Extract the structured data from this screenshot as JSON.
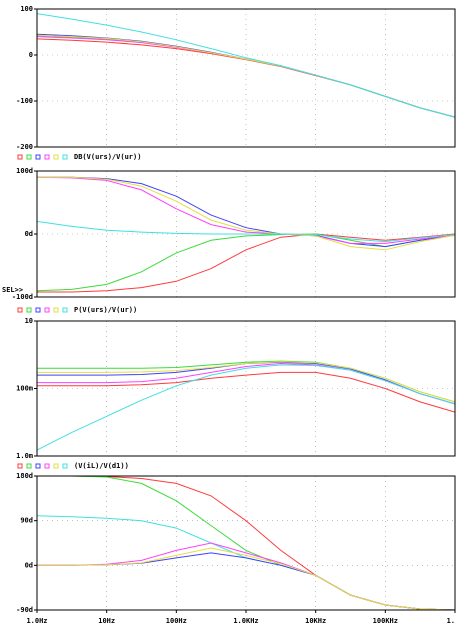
{
  "chart_data": [
    {
      "type": "line",
      "trace": "DB(V(urs)/V(ur))",
      "xscale": "log",
      "yscale": "linear",
      "x": [
        1,
        3.16,
        10,
        31.6,
        100,
        316,
        1000,
        3160,
        10000,
        31600,
        100000,
        316000,
        1000000
      ],
      "xlim": [
        1,
        1000000
      ],
      "ylim": [
        -200,
        100
      ],
      "yticks": [
        100,
        0,
        -100,
        -200
      ],
      "grid": true,
      "series": [
        {
          "color": "#ff3b3b",
          "values": [
            35,
            32,
            28,
            22,
            14,
            3,
            -10,
            -25,
            -45,
            -65,
            -90,
            -115,
            -135
          ]
        },
        {
          "color": "#3bdc3b",
          "values": [
            42,
            39,
            35,
            28,
            18,
            5,
            -9,
            -24,
            -44,
            -65,
            -90,
            -115,
            -135
          ]
        },
        {
          "color": "#4040ff",
          "values": [
            45,
            42,
            37,
            30,
            19,
            6,
            -9,
            -24,
            -44,
            -65,
            -90,
            -115,
            -135
          ]
        },
        {
          "color": "#ff40ff",
          "values": [
            40,
            37,
            33,
            27,
            17,
            5,
            -9,
            -24,
            -44,
            -65,
            -90,
            -115,
            -135
          ]
        },
        {
          "color": "#e0e040",
          "values": [
            43,
            40,
            36,
            29,
            18,
            5,
            -9,
            -24,
            -44,
            -65,
            -90,
            -115,
            -135
          ]
        },
        {
          "color": "#40e0e0",
          "values": [
            90,
            78,
            65,
            50,
            33,
            14,
            -6,
            -23,
            -44,
            -65,
            -90,
            -115,
            -135
          ]
        }
      ]
    },
    {
      "type": "line",
      "trace": "P(V(urs)/V(ur))",
      "selector": "SEL>>",
      "xscale": "log",
      "yscale": "linear",
      "x": [
        1,
        3.16,
        10,
        31.6,
        100,
        316,
        1000,
        3160,
        10000,
        31600,
        100000,
        316000,
        1000000
      ],
      "xlim": [
        1,
        1000000
      ],
      "ylim": [
        -100,
        100
      ],
      "yticks": [
        {
          "value": 100,
          "label": "100d"
        },
        {
          "value": 0,
          "label": "0d"
        },
        {
          "value": -100,
          "label": "-100d"
        }
      ],
      "grid": true,
      "series": [
        {
          "color": "#ff3b3b",
          "values": [
            -92,
            -92,
            -90,
            -85,
            -75,
            -55,
            -25,
            -5,
            0,
            -5,
            -10,
            -5,
            0
          ]
        },
        {
          "color": "#3bdc3b",
          "values": [
            -90,
            -88,
            -80,
            -60,
            -30,
            -10,
            -3,
            -1,
            0,
            -10,
            -20,
            -10,
            -2
          ]
        },
        {
          "color": "#4040ff",
          "values": [
            90,
            90,
            88,
            80,
            60,
            30,
            10,
            0,
            -2,
            -15,
            -20,
            -10,
            -2
          ]
        },
        {
          "color": "#ff40ff",
          "values": [
            90,
            89,
            85,
            70,
            40,
            15,
            3,
            0,
            -3,
            -15,
            -15,
            -8,
            -2
          ]
        },
        {
          "color": "#e0e040",
          "values": [
            90,
            90,
            87,
            76,
            52,
            22,
            6,
            0,
            -3,
            -20,
            -25,
            -12,
            -2
          ]
        },
        {
          "color": "#40e0e0",
          "values": [
            20,
            12,
            6,
            3,
            1,
            0,
            0,
            0,
            -1,
            -8,
            -12,
            -6,
            -1
          ]
        }
      ]
    },
    {
      "type": "line",
      "trace": "(V(iL)/V(d1))",
      "xscale": "log",
      "yscale": "log",
      "x": [
        1,
        3.16,
        10,
        31.6,
        100,
        316,
        1000,
        3160,
        10000,
        31600,
        100000,
        316000,
        1000000
      ],
      "xlim": [
        1,
        1000000
      ],
      "ylim": [
        0.001,
        10
      ],
      "yticks": [
        10,
        {
          "value": 0.1,
          "label": "100m"
        },
        {
          "value": 0.001,
          "label": "1.0m"
        }
      ],
      "grid": true,
      "series": [
        {
          "color": "#ff3b3b",
          "values": [
            0.12,
            0.12,
            0.12,
            0.13,
            0.15,
            0.2,
            0.25,
            0.3,
            0.3,
            0.2,
            0.1,
            0.04,
            0.02
          ]
        },
        {
          "color": "#3bdc3b",
          "values": [
            0.4,
            0.4,
            0.4,
            0.4,
            0.42,
            0.5,
            0.6,
            0.65,
            0.6,
            0.4,
            0.2,
            0.08,
            0.04
          ]
        },
        {
          "color": "#4040ff",
          "values": [
            0.25,
            0.25,
            0.25,
            0.26,
            0.3,
            0.4,
            0.55,
            0.6,
            0.55,
            0.38,
            0.18,
            0.07,
            0.035
          ]
        },
        {
          "color": "#ff40ff",
          "values": [
            0.15,
            0.15,
            0.15,
            0.16,
            0.2,
            0.3,
            0.45,
            0.55,
            0.5,
            0.35,
            0.17,
            0.07,
            0.035
          ]
        },
        {
          "color": "#e0e040",
          "values": [
            0.3,
            0.3,
            0.3,
            0.31,
            0.34,
            0.42,
            0.55,
            0.62,
            0.58,
            0.4,
            0.2,
            0.08,
            0.04
          ]
        },
        {
          "color": "#40e0e0",
          "values": [
            0.0015,
            0.005,
            0.015,
            0.045,
            0.12,
            0.25,
            0.4,
            0.5,
            0.48,
            0.35,
            0.17,
            0.07,
            0.035
          ]
        }
      ]
    },
    {
      "type": "line",
      "xscale": "log",
      "yscale": "linear",
      "x": [
        1,
        3.16,
        10,
        31.6,
        100,
        316,
        1000,
        3160,
        10000,
        31600,
        100000,
        316000,
        1000000
      ],
      "xlim": [
        1,
        1000000
      ],
      "ylim": [
        -90,
        180
      ],
      "yticks": [
        {
          "value": 180,
          "label": "180d"
        },
        {
          "value": 90,
          "label": "90d"
        },
        {
          "value": 0,
          "label": "0d"
        },
        {
          "value": -90,
          "label": "-90d"
        }
      ],
      "xticks": [
        {
          "value": 1,
          "label": "1.0Hz"
        },
        {
          "value": 10,
          "label": "10Hz"
        },
        {
          "value": 100,
          "label": "100Hz"
        },
        {
          "value": 1000,
          "label": "1.0KHz"
        },
        {
          "value": 10000,
          "label": "10KHz"
        },
        {
          "value": 100000,
          "label": "100KHz"
        },
        {
          "value": 1000000,
          "label": "1."
        }
      ],
      "grid": true,
      "series": [
        {
          "color": "#ff3b3b",
          "values": [
            180,
            180,
            179,
            175,
            165,
            140,
            90,
            30,
            -20,
            -60,
            -80,
            -88,
            -90
          ]
        },
        {
          "color": "#3bdc3b",
          "values": [
            180,
            180,
            178,
            165,
            130,
            80,
            30,
            0,
            -20,
            -60,
            -80,
            -88,
            -90
          ]
        },
        {
          "color": "#40e0e0",
          "values": [
            100,
            98,
            95,
            90,
            75,
            45,
            15,
            0,
            -20,
            -60,
            -80,
            -88,
            -90
          ]
        },
        {
          "color": "#4040ff",
          "values": [
            0,
            0,
            1,
            4,
            15,
            25,
            15,
            0,
            -20,
            -60,
            -80,
            -88,
            -90
          ]
        },
        {
          "color": "#ff40ff",
          "values": [
            0,
            0,
            2,
            10,
            30,
            45,
            25,
            5,
            -20,
            -60,
            -80,
            -88,
            -90
          ]
        },
        {
          "color": "#e0e040",
          "values": [
            0,
            0,
            1,
            5,
            20,
            35,
            20,
            3,
            -20,
            -60,
            -80,
            -88,
            -90
          ]
        }
      ]
    }
  ]
}
